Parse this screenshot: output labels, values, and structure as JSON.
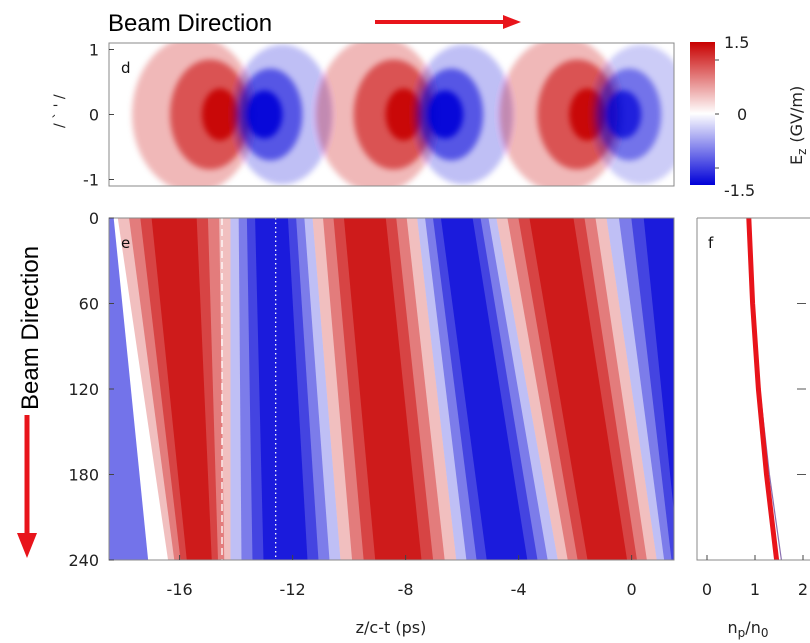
{
  "annotations": {
    "beam_direction_top": "Beam Direction",
    "beam_direction_left": "Beam Direction",
    "arrow_color": "#e8141b"
  },
  "colorbar": {
    "label": "E_z (GV/m)",
    "label_main": "E",
    "label_sub": "z",
    "label_unit": "(GV/m)",
    "ticks": [
      "1.5",
      "0",
      "-1.5"
    ],
    "colormap": [
      "#0000d8",
      "#ffffff",
      "#c80000"
    ]
  },
  "chart_data": [
    {
      "type": "heatmap",
      "panel_label": "d",
      "quantity": "E_z (GV/m)",
      "xlim": [
        -18.5,
        1.5
      ],
      "ylim": [
        -1.1,
        1.1
      ],
      "yticks": [
        "1",
        "0",
        "-1"
      ],
      "ylabel_partial": "/ ` ' /",
      "field_lobes": [
        {
          "z": -14.5,
          "sign": 1,
          "peak": 1.5
        },
        {
          "z": -13.0,
          "sign": -1,
          "peak": -1.5
        },
        {
          "z": -8.0,
          "sign": 1,
          "peak": 1.5
        },
        {
          "z": -6.6,
          "sign": -1,
          "peak": -1.5
        },
        {
          "z": -1.5,
          "sign": 1,
          "peak": 1.5
        },
        {
          "z": -0.3,
          "sign": -1,
          "peak": -1.2
        }
      ]
    },
    {
      "type": "heatmap",
      "panel_label": "e",
      "quantity": "E_z (GV/m)",
      "xlabel": "z/c-t (ps)",
      "xlim": [
        -18.5,
        1.5
      ],
      "ylim": [
        0,
        240
      ],
      "xticks": [
        "-16",
        "-12",
        "-8",
        "-4",
        "0"
      ],
      "yticks": [
        "0",
        "60",
        "120",
        "180",
        "240"
      ],
      "zero_crossings": [
        {
          "sign_after": 1,
          "z_at_0": -18.2,
          "z_at_240": -16.4
        },
        {
          "sign_after": -1,
          "z_at_0": -14.2,
          "z_at_240": -14.2
        },
        {
          "sign_after": 1,
          "z_at_0": -11.3,
          "z_at_240": -10.3
        },
        {
          "sign_after": -1,
          "z_at_0": -7.6,
          "z_at_240": -6.2
        },
        {
          "sign_after": 1,
          "z_at_0": -4.8,
          "z_at_240": -2.6
        },
        {
          "sign_after": -1,
          "z_at_0": -0.9,
          "z_at_240": 0.9
        }
      ],
      "reference_lines": [
        {
          "style": "dashed",
          "z": -14.5
        },
        {
          "style": "dotted",
          "z": -12.6
        }
      ]
    },
    {
      "type": "line",
      "panel_label": "f",
      "xlabel": "n_p/n_0",
      "xlim": [
        0,
        2
      ],
      "ylim": [
        0,
        240
      ],
      "xticks": [
        "0",
        "1",
        "2"
      ],
      "series": [
        {
          "color": "#e8141b",
          "points": [
            [
              0.87,
              0
            ],
            [
              0.95,
              60
            ],
            [
              1.07,
              120
            ],
            [
              1.24,
              180
            ],
            [
              1.45,
              240
            ]
          ]
        },
        {
          "color": "#8a6fb0",
          "points": [
            [
              0.87,
              0
            ],
            [
              0.97,
              60
            ],
            [
              1.1,
              120
            ],
            [
              1.3,
              180
            ],
            [
              1.55,
              240
            ]
          ]
        }
      ]
    }
  ]
}
